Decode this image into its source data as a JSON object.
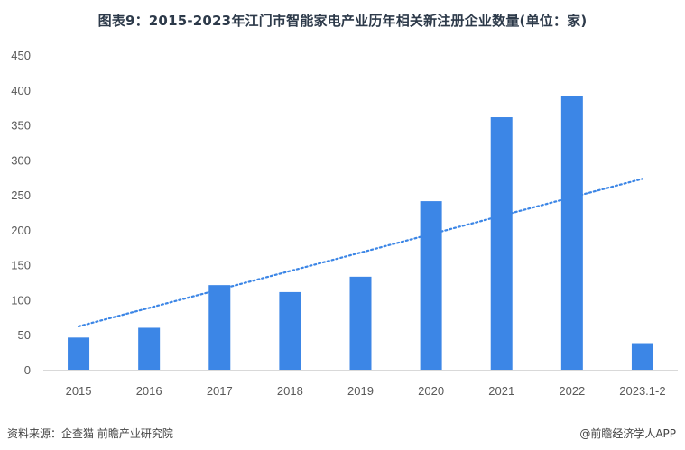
{
  "title": "图表9：2015-2023年江门市智能家电产业历年相关新注册企业数量(单位：家)",
  "source": "资料来源：企查猫 前瞻产业研究院",
  "credit": "@前瞻经济学人APP",
  "colors": {
    "bar": "#3c86e6",
    "trend": "#3c86e6",
    "axis": "#d9d9d9",
    "text": "#595959"
  },
  "chart_data": {
    "type": "bar",
    "categories": [
      "2015",
      "2016",
      "2017",
      "2018",
      "2019",
      "2020",
      "2021",
      "2022",
      "2023.1-2"
    ],
    "values": [
      46,
      60,
      121,
      111,
      133,
      241,
      361,
      391,
      38
    ],
    "ylim": [
      0,
      450
    ],
    "yticks": [
      0,
      50,
      100,
      150,
      200,
      250,
      300,
      350,
      400,
      450
    ],
    "trendline": {
      "style": "dotted",
      "start": 62,
      "end": 273
    },
    "grid": false,
    "legend": "none"
  }
}
